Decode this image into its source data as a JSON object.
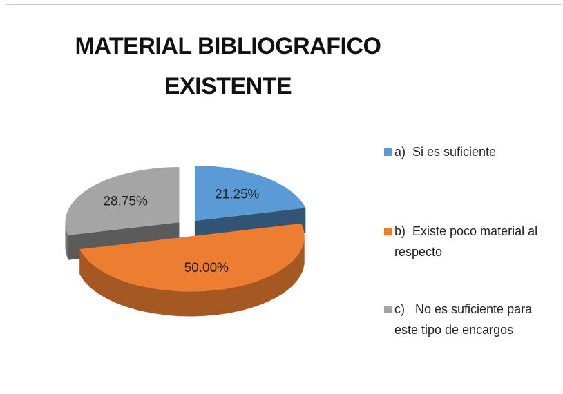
{
  "chart_data": {
    "type": "pie",
    "title": "MATERIAL BIBLIOGRAFICO EXISTENTE",
    "categories": [
      "a)  Si es suficiente",
      "b)  Existe poco material al respecto",
      "c)   No es suficiente para este tipo de encargos"
    ],
    "values": [
      21.25,
      50,
      28.75
    ],
    "value_labels": [
      "21.25%",
      "50.00%",
      "28.75%"
    ],
    "colors": [
      "#5b9bd5",
      "#ed7d31",
      "#a5a5a5"
    ],
    "legend": "right"
  }
}
